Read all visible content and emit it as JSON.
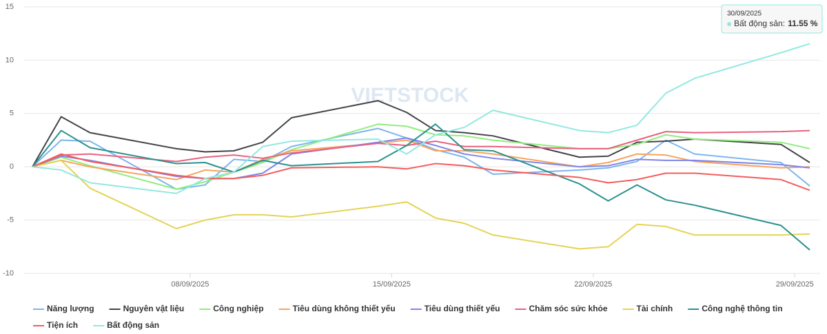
{
  "chart_data": {
    "type": "line",
    "x": [
      "03/09/2025",
      "04/09/2025",
      "05/09/2025",
      "08/09/2025",
      "09/09/2025",
      "10/09/2025",
      "11/09/2025",
      "12/09/2025",
      "15/09/2025",
      "16/09/2025",
      "17/09/2025",
      "18/09/2025",
      "19/09/2025",
      "22/09/2025",
      "23/09/2025",
      "24/09/2025",
      "25/09/2025",
      "26/09/2025",
      "29/09/2025",
      "30/09/2025"
    ],
    "xticks": [
      "08/09/2025",
      "15/09/2025",
      "22/09/2025",
      "29/09/2025"
    ],
    "ylim": [
      -10,
      15
    ],
    "yticks": [
      -10,
      -5,
      0,
      5,
      10,
      15
    ],
    "grid": true,
    "series": [
      {
        "name": "Năng lượng",
        "color": "#7cb5ec",
        "values": [
          0,
          2.5,
          2.4,
          -2.1,
          -1.7,
          0.7,
          0.5,
          1.9,
          3.6,
          2.7,
          1.6,
          0.9,
          -0.7,
          -0.3,
          -0.1,
          0.5,
          2.5,
          1.2,
          0.4,
          -1.8
        ]
      },
      {
        "name": "Nguyên vật liệu",
        "color": "#434348",
        "values": [
          0,
          4.7,
          3.2,
          1.7,
          1.4,
          1.5,
          2.3,
          4.6,
          6.2,
          5.1,
          3.4,
          3.2,
          2.9,
          0.9,
          1.0,
          2.3,
          2.4,
          2.6,
          2.1,
          0.4
        ]
      },
      {
        "name": "Công nghiệp",
        "color": "#90ed7d",
        "values": [
          0,
          0.9,
          0.1,
          -2.1,
          -1.4,
          -0.5,
          0.4,
          1.6,
          4.0,
          3.8,
          3.0,
          2.9,
          2.5,
          1.7,
          1.7,
          2.1,
          3.0,
          2.6,
          2.3,
          1.7
        ]
      },
      {
        "name": "Tiêu dùng không thiết yếu",
        "color": "#f7a35c",
        "values": [
          0,
          0.6,
          0.0,
          -1.2,
          -0.3,
          -0.5,
          0.7,
          1.5,
          2.2,
          2.5,
          1.5,
          1.5,
          1.2,
          0.0,
          0.4,
          1.2,
          1.1,
          0.5,
          -0.1,
          0.0
        ]
      },
      {
        "name": "Tiêu dùng thiết yếu",
        "color": "#8085e9",
        "values": [
          0,
          1.0,
          0.6,
          -0.9,
          -1.1,
          -1.1,
          -0.6,
          1.2,
          2.3,
          2.7,
          2.0,
          1.2,
          0.8,
          0.0,
          0.1,
          0.7,
          0.6,
          0.6,
          0.2,
          -0.1
        ]
      },
      {
        "name": "Chăm sóc sức khỏe",
        "color": "#e8607e",
        "values": [
          0,
          1.1,
          1.2,
          0.5,
          0.9,
          1.1,
          0.8,
          1.3,
          2.2,
          2.0,
          2.4,
          1.9,
          1.9,
          1.7,
          1.7,
          2.5,
          3.3,
          3.2,
          3.3,
          3.4
        ]
      },
      {
        "name": "Tài chính",
        "color": "#e4d354",
        "values": [
          0,
          0.6,
          -2.0,
          -5.8,
          -5.0,
          -4.5,
          -4.5,
          -4.7,
          -3.7,
          -3.3,
          -4.8,
          -5.3,
          -6.4,
          -7.7,
          -7.5,
          -5.4,
          -5.6,
          -6.4,
          -6.4,
          -6.3
        ]
      },
      {
        "name": "Công nghệ thông tin",
        "color": "#2b908f",
        "values": [
          0,
          3.4,
          1.8,
          0.3,
          0.4,
          -0.5,
          0.6,
          0.1,
          0.5,
          2.0,
          4.0,
          1.6,
          1.5,
          -1.6,
          -3.2,
          -1.7,
          -3.1,
          -3.6,
          -5.5,
          -7.8
        ]
      },
      {
        "name": "Tiện ích",
        "color": "#f45b5b",
        "values": [
          0,
          1.2,
          0.5,
          -0.8,
          -1.1,
          -1.1,
          -0.8,
          -0.1,
          0.0,
          -0.2,
          0.3,
          0.1,
          -0.3,
          -1.0,
          -1.5,
          -1.2,
          -0.6,
          -0.6,
          -1.2,
          -2.2
        ]
      },
      {
        "name": "Bất động sản",
        "color": "#91e8e1",
        "values": [
          0,
          -0.3,
          -1.5,
          -2.5,
          -1.1,
          -0.5,
          1.9,
          2.4,
          2.6,
          1.2,
          3.0,
          3.7,
          5.3,
          3.4,
          3.2,
          3.9,
          6.9,
          8.3,
          10.7,
          11.55
        ]
      }
    ],
    "watermark": "VIETSTOCK",
    "tooltip": {
      "title": "30/09/2025",
      "label": "Bất động sản:",
      "value": "11.55 %"
    }
  }
}
